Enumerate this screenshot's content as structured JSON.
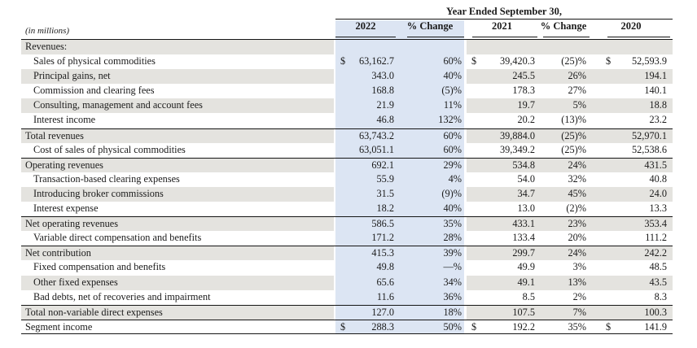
{
  "table": {
    "title": "Year Ended September 30,",
    "units_label": "(in millions)",
    "columns": [
      "2022",
      "% Change",
      "2021",
      "% Change",
      "2020"
    ],
    "colors": {
      "highlight_column": "#dce5f3",
      "row_stripe": "#e4e3df",
      "rule": "#151515"
    },
    "rows": [
      {
        "label": "Revenues:",
        "indent": false,
        "dollar": false,
        "y2022": "",
        "chg1": "",
        "y2021": "",
        "chg2": "",
        "y2020": "",
        "rule_above": false,
        "rule_below": false
      },
      {
        "label": "Sales of physical commodities",
        "indent": true,
        "dollar": true,
        "y2022": "63,162.7",
        "chg1": "60%",
        "y2021": "39,420.3",
        "chg2": "(25)%",
        "y2020": "52,593.9",
        "rule_above": false,
        "rule_below": false
      },
      {
        "label": "Principal gains, net",
        "indent": true,
        "dollar": false,
        "y2022": "343.0",
        "chg1": "40%",
        "y2021": "245.5",
        "chg2": "26%",
        "y2020": "194.1",
        "rule_above": false,
        "rule_below": false
      },
      {
        "label": "Commission and clearing fees",
        "indent": true,
        "dollar": false,
        "y2022": "168.8",
        "chg1": "(5)%",
        "y2021": "178.3",
        "chg2": "27%",
        "y2020": "140.1",
        "rule_above": false,
        "rule_below": false
      },
      {
        "label": "Consulting, management and account fees",
        "indent": true,
        "dollar": false,
        "y2022": "21.9",
        "chg1": "11%",
        "y2021": "19.7",
        "chg2": "5%",
        "y2020": "18.8",
        "rule_above": false,
        "rule_below": false
      },
      {
        "label": "Interest income",
        "indent": true,
        "dollar": false,
        "y2022": "46.8",
        "chg1": "132%",
        "y2021": "20.2",
        "chg2": "(13)%",
        "y2020": "23.2",
        "rule_above": false,
        "rule_below": false
      },
      {
        "label": "Total revenues",
        "indent": false,
        "dollar": false,
        "y2022": "63,743.2",
        "chg1": "60%",
        "y2021": "39,884.0",
        "chg2": "(25)%",
        "y2020": "52,970.1",
        "rule_above": true,
        "rule_below": false
      },
      {
        "label": "Cost of sales of physical commodities",
        "indent": true,
        "dollar": false,
        "y2022": "63,051.1",
        "chg1": "60%",
        "y2021": "39,349.2",
        "chg2": "(25)%",
        "y2020": "52,538.6",
        "rule_above": false,
        "rule_below": false
      },
      {
        "label": "Operating revenues",
        "indent": false,
        "dollar": false,
        "y2022": "692.1",
        "chg1": "29%",
        "y2021": "534.8",
        "chg2": "24%",
        "y2020": "431.5",
        "rule_above": true,
        "rule_below": false
      },
      {
        "label": "Transaction-based clearing expenses",
        "indent": true,
        "dollar": false,
        "y2022": "55.9",
        "chg1": "4%",
        "y2021": "54.0",
        "chg2": "32%",
        "y2020": "40.8",
        "rule_above": false,
        "rule_below": false
      },
      {
        "label": "Introducing broker commissions",
        "indent": true,
        "dollar": false,
        "y2022": "31.5",
        "chg1": "(9)%",
        "y2021": "34.7",
        "chg2": "45%",
        "y2020": "24.0",
        "rule_above": false,
        "rule_below": false
      },
      {
        "label": "Interest expense",
        "indent": true,
        "dollar": false,
        "y2022": "18.2",
        "chg1": "40%",
        "y2021": "13.0",
        "chg2": "(2)%",
        "y2020": "13.3",
        "rule_above": false,
        "rule_below": false
      },
      {
        "label": "Net operating revenues",
        "indent": false,
        "dollar": false,
        "y2022": "586.5",
        "chg1": "35%",
        "y2021": "433.1",
        "chg2": "23%",
        "y2020": "353.4",
        "rule_above": true,
        "rule_below": false
      },
      {
        "label": "Variable direct compensation and benefits",
        "indent": true,
        "dollar": false,
        "y2022": "171.2",
        "chg1": "28%",
        "y2021": "133.4",
        "chg2": "20%",
        "y2020": "111.2",
        "rule_above": false,
        "rule_below": false
      },
      {
        "label": "Net contribution",
        "indent": false,
        "dollar": false,
        "y2022": "415.3",
        "chg1": "39%",
        "y2021": "299.7",
        "chg2": "24%",
        "y2020": "242.2",
        "rule_above": true,
        "rule_below": false
      },
      {
        "label": "Fixed compensation and benefits",
        "indent": true,
        "dollar": false,
        "y2022": "49.8",
        "chg1": "—%",
        "y2021": "49.9",
        "chg2": "3%",
        "y2020": "48.5",
        "rule_above": false,
        "rule_below": false
      },
      {
        "label": "Other fixed expenses",
        "indent": true,
        "dollar": false,
        "y2022": "65.6",
        "chg1": "34%",
        "y2021": "49.1",
        "chg2": "13%",
        "y2020": "43.5",
        "rule_above": false,
        "rule_below": false
      },
      {
        "label": "Bad debts, net of recoveries and impairment",
        "indent": true,
        "dollar": false,
        "y2022": "11.6",
        "chg1": "36%",
        "y2021": "8.5",
        "chg2": "2%",
        "y2020": "8.3",
        "rule_above": false,
        "rule_below": false
      },
      {
        "label": "Total non-variable direct expenses",
        "indent": false,
        "dollar": false,
        "y2022": "127.0",
        "chg1": "18%",
        "y2021": "107.5",
        "chg2": "7%",
        "y2020": "100.3",
        "rule_above": true,
        "rule_below": false
      },
      {
        "label": "Segment income",
        "indent": false,
        "dollar": true,
        "y2022": "288.3",
        "chg1": "50%",
        "y2021": "192.2",
        "chg2": "35%",
        "y2020": "141.9",
        "rule_above": true,
        "rule_below": true
      }
    ]
  }
}
